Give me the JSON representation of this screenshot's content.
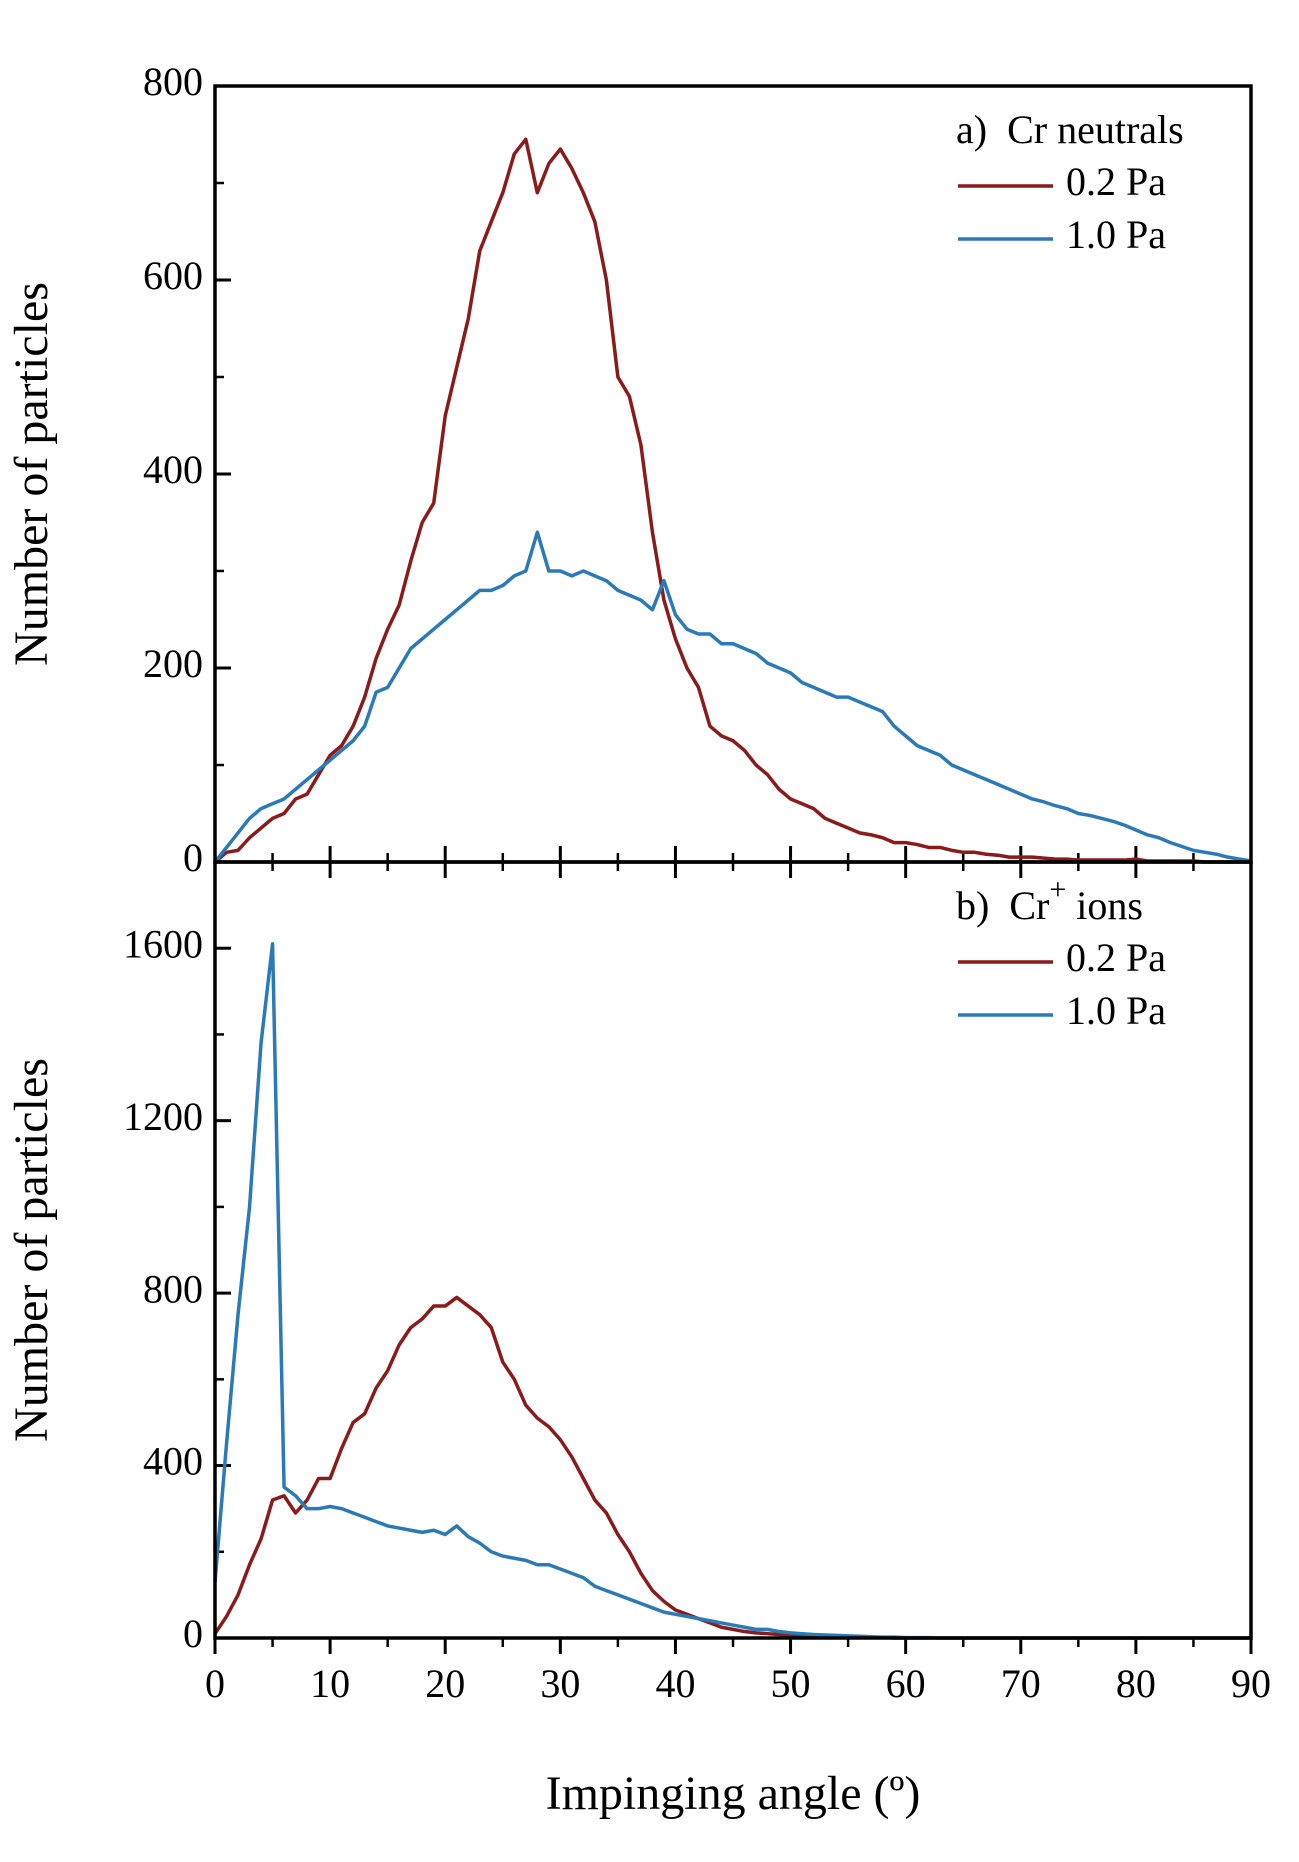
{
  "chart_data": [
    {
      "type": "line",
      "annotation": "a)  Cr neutrals",
      "y_label": "Number of particles",
      "x": [
        0,
        1,
        2,
        3,
        4,
        5,
        6,
        7,
        8,
        9,
        10,
        11,
        12,
        13,
        14,
        15,
        16,
        17,
        18,
        19,
        20,
        21,
        22,
        23,
        24,
        25,
        26,
        27,
        28,
        29,
        30,
        31,
        32,
        33,
        34,
        35,
        36,
        37,
        38,
        39,
        40,
        41,
        42,
        43,
        44,
        45,
        46,
        47,
        48,
        49,
        50,
        51,
        52,
        53,
        54,
        55,
        56,
        57,
        58,
        59,
        60,
        61,
        62,
        63,
        64,
        65,
        66,
        67,
        68,
        69,
        70,
        71,
        72,
        73,
        74,
        75,
        76,
        77,
        78,
        79,
        80,
        81,
        82,
        83,
        84,
        85,
        86,
        87,
        88,
        89,
        90
      ],
      "xlim": [
        0,
        90
      ],
      "xticks": [
        0,
        10,
        20,
        30,
        40,
        50,
        60,
        70,
        80,
        90
      ],
      "ylim": [
        0,
        800
      ],
      "yticks": [
        0,
        200,
        400,
        600,
        800
      ],
      "series": [
        {
          "name": "0.2 Pa",
          "color": "#8b1a1a",
          "values": [
            0,
            10,
            12,
            25,
            35,
            45,
            50,
            65,
            70,
            90,
            110,
            120,
            140,
            170,
            210,
            240,
            265,
            310,
            350,
            370,
            460,
            510,
            560,
            630,
            660,
            690,
            730,
            745,
            690,
            720,
            735,
            715,
            690,
            660,
            600,
            500,
            480,
            430,
            340,
            270,
            230,
            200,
            180,
            140,
            130,
            125,
            115,
            100,
            90,
            75,
            65,
            60,
            55,
            45,
            40,
            35,
            30,
            28,
            25,
            20,
            20,
            18,
            15,
            15,
            12,
            10,
            10,
            8,
            7,
            5,
            5,
            5,
            4,
            3,
            3,
            2,
            2,
            2,
            2,
            2,
            3,
            1,
            1,
            1,
            1,
            1,
            0,
            0,
            0,
            0,
            0
          ]
        },
        {
          "name": "1.0 Pa",
          "color": "#2a7ab8",
          "values": [
            0,
            15,
            30,
            45,
            55,
            60,
            65,
            75,
            85,
            95,
            105,
            115,
            125,
            140,
            175,
            180,
            200,
            220,
            230,
            240,
            250,
            260,
            270,
            280,
            280,
            285,
            295,
            300,
            340,
            300,
            300,
            295,
            300,
            295,
            290,
            280,
            275,
            270,
            260,
            290,
            255,
            240,
            235,
            235,
            225,
            225,
            220,
            215,
            205,
            200,
            195,
            185,
            180,
            175,
            170,
            170,
            165,
            160,
            155,
            140,
            130,
            120,
            115,
            110,
            100,
            95,
            90,
            85,
            80,
            75,
            70,
            65,
            62,
            58,
            55,
            50,
            48,
            45,
            42,
            38,
            33,
            28,
            25,
            20,
            16,
            12,
            10,
            8,
            5,
            3,
            1
          ]
        }
      ]
    },
    {
      "type": "line",
      "annotation_prefix": "b)  Cr",
      "annotation_sup": "+",
      "annotation_suffix": " ions",
      "y_label": "Number of particles",
      "x_label": "Impinging angle (º)",
      "x": [
        0,
        1,
        2,
        3,
        4,
        5,
        6,
        7,
        8,
        9,
        10,
        11,
        12,
        13,
        14,
        15,
        16,
        17,
        18,
        19,
        20,
        21,
        22,
        23,
        24,
        25,
        26,
        27,
        28,
        29,
        30,
        31,
        32,
        33,
        34,
        35,
        36,
        37,
        38,
        39,
        40,
        41,
        42,
        43,
        44,
        45,
        46,
        47,
        48,
        49,
        50,
        51,
        52,
        53,
        54,
        55,
        56,
        57,
        58,
        59,
        60,
        61,
        62,
        63,
        64,
        65,
        66,
        67,
        68,
        69,
        70,
        71,
        72,
        73,
        74,
        75,
        76,
        77,
        78,
        79,
        80,
        81,
        82,
        83,
        84,
        85,
        86,
        87,
        88,
        89,
        90
      ],
      "xlim": [
        0,
        90
      ],
      "xticks": [
        0,
        10,
        20,
        30,
        40,
        50,
        60,
        70,
        80,
        90
      ],
      "ylim": [
        0,
        1800
      ],
      "yticks": [
        0,
        400,
        800,
        1200,
        1600
      ],
      "series": [
        {
          "name": "0.2 Pa",
          "color": "#8b1a1a",
          "values": [
            10,
            50,
            100,
            170,
            230,
            320,
            330,
            290,
            320,
            370,
            370,
            440,
            500,
            520,
            580,
            620,
            680,
            720,
            740,
            770,
            770,
            790,
            770,
            750,
            720,
            640,
            600,
            540,
            510,
            490,
            460,
            420,
            370,
            320,
            290,
            240,
            200,
            150,
            110,
            85,
            65,
            55,
            45,
            35,
            25,
            20,
            15,
            12,
            10,
            8,
            6,
            5,
            4,
            3,
            2,
            2,
            1,
            1,
            1,
            0,
            0,
            0,
            0,
            0,
            0,
            0,
            0,
            0,
            0,
            0,
            0,
            0,
            0,
            0,
            0,
            0,
            0,
            0,
            0,
            0,
            0,
            0,
            0,
            0,
            0,
            0,
            0,
            0,
            0,
            0,
            0
          ]
        },
        {
          "name": "1.0 Pa",
          "color": "#2a7ab8",
          "values": [
            130,
            450,
            750,
            1000,
            1380,
            1610,
            350,
            330,
            300,
            300,
            305,
            300,
            290,
            280,
            270,
            260,
            255,
            250,
            245,
            250,
            240,
            260,
            235,
            220,
            200,
            190,
            185,
            180,
            170,
            170,
            160,
            150,
            140,
            120,
            110,
            100,
            90,
            80,
            70,
            60,
            55,
            50,
            45,
            40,
            35,
            30,
            25,
            20,
            20,
            15,
            12,
            10,
            8,
            7,
            6,
            5,
            4,
            3,
            2,
            2,
            1,
            1,
            1,
            0,
            0,
            0,
            0,
            0,
            0,
            0,
            0,
            0,
            0,
            0,
            0,
            0,
            0,
            0,
            0,
            0,
            0,
            0,
            0,
            0,
            0,
            0,
            0,
            0,
            0,
            0,
            0
          ]
        }
      ]
    }
  ]
}
